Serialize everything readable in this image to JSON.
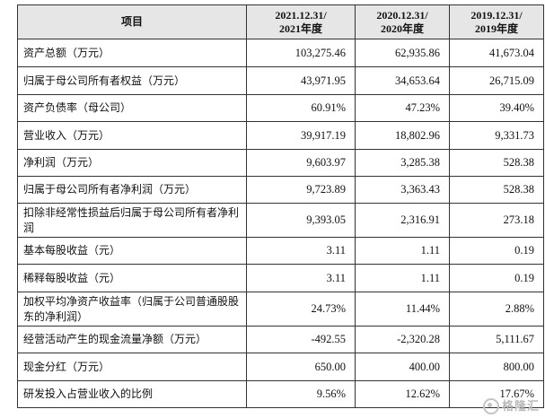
{
  "header": {
    "item_label": "项目",
    "columns": [
      {
        "line1": "2021.12.31/",
        "year": "2021",
        "suffix": "年度"
      },
      {
        "line1": "2020.12.31/",
        "year": "2020",
        "suffix": "年度"
      },
      {
        "line1": "2019.12.31/",
        "year": "2019",
        "suffix": "年度"
      }
    ]
  },
  "rows": [
    {
      "label": "资产总额（万元）",
      "values": [
        "103,275.46",
        "62,935.86",
        "41,673.04"
      ]
    },
    {
      "label": "归属于母公司所有者权益（万元）",
      "values": [
        "43,971.95",
        "34,653.64",
        "26,715.09"
      ]
    },
    {
      "label": "资产负债率（母公司）",
      "values": [
        "60.91%",
        "47.23%",
        "39.40%"
      ]
    },
    {
      "label": "营业收入（万元）",
      "values": [
        "39,917.19",
        "18,802.96",
        "9,331.73"
      ]
    },
    {
      "label": "净利润（万元）",
      "values": [
        "9,603.97",
        "3,285.38",
        "528.38"
      ]
    },
    {
      "label": "归属于母公司所有者净利润（万元）",
      "values": [
        "9,723.89",
        "3,363.43",
        "528.38"
      ]
    },
    {
      "label": "扣除非经常性损益后归属于母公司所有者净利润",
      "values": [
        "9,393.05",
        "2,316.91",
        "273.18"
      ]
    },
    {
      "label": "基本每股收益（元）",
      "values": [
        "3.11",
        "1.11",
        "0.19"
      ]
    },
    {
      "label": "稀释每股收益（元）",
      "values": [
        "3.11",
        "1.11",
        "0.19"
      ]
    },
    {
      "label": "加权平均净资产收益率（归属于公司普通股股东的净利润）",
      "values": [
        "24.73%",
        "11.44%",
        "2.88%"
      ]
    },
    {
      "label": "经营活动产生的现金流量净额（万元）",
      "values": [
        "-492.55",
        "-2,320.28",
        "5,111.67"
      ]
    },
    {
      "label": "现金分红（万元）",
      "values": [
        "650.00",
        "400.00",
        "800.00"
      ]
    },
    {
      "label": "研发投入占营业收入的比例",
      "values": [
        "9.56%",
        "12.62%",
        "17.67%"
      ]
    }
  ],
  "watermark": "格隆汇"
}
